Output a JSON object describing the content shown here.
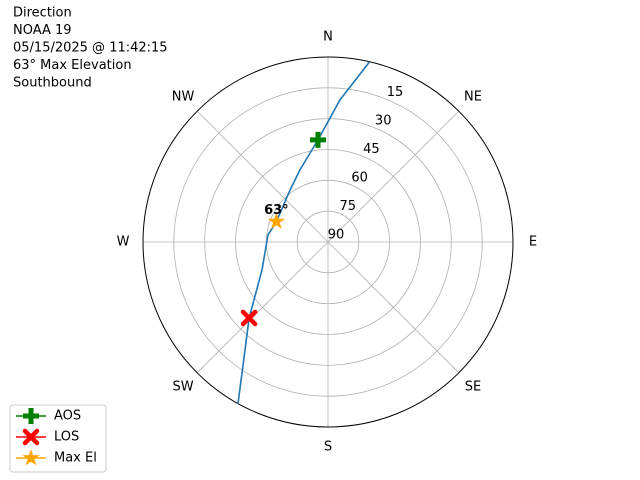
{
  "chart_data": {
    "type": "polar",
    "title_lines": [
      "Direction",
      "NOAA 19",
      "05/15/2025 @ 11:42:15",
      "63° Max Elevation",
      "Southbound"
    ],
    "theta_ticks": [
      {
        "value": 0,
        "label": "N"
      },
      {
        "value": 45,
        "label": "NE"
      },
      {
        "value": 90,
        "label": "E"
      },
      {
        "value": 135,
        "label": "SE"
      },
      {
        "value": 180,
        "label": "S"
      },
      {
        "value": 225,
        "label": "SW"
      },
      {
        "value": 270,
        "label": "W"
      },
      {
        "value": 315,
        "label": "NW"
      }
    ],
    "rlim": [
      90,
      0
    ],
    "rticks": [
      90,
      75,
      60,
      45,
      30,
      15
    ],
    "grid": true,
    "track": {
      "color": "#1f77b4",
      "theta": [
        13,
        4.8,
        354.4,
        338.7,
        323.8,
        291.6,
        276.7,
        247,
        226.1,
        217.5,
        209.1
      ],
      "r": [
        0,
        20.7,
        40.1,
        52.4,
        58.7,
        63,
        60.6,
        55.1,
        36.7,
        23.7,
        0
      ]
    },
    "markers": [
      {
        "name": "AOS",
        "color": "#008000",
        "marker": "plus",
        "theta": 354.4,
        "r": 40.1
      },
      {
        "name": "LOS",
        "color": "#ff0000",
        "marker": "x",
        "theta": 226.1,
        "r": 36.7
      },
      {
        "name": "Max El",
        "color": "#ffa500",
        "marker": "star",
        "theta": 291.6,
        "r": 63
      }
    ],
    "annotation": {
      "text": "63°",
      "marker": 2
    },
    "legend": "lower left"
  }
}
